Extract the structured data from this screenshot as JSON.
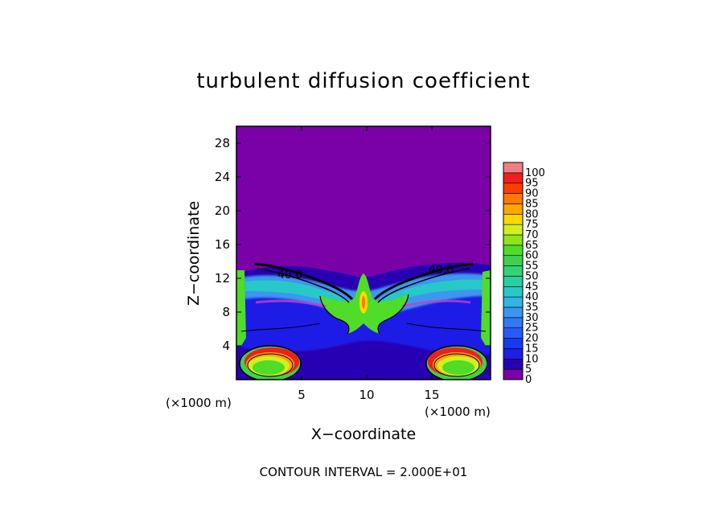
{
  "chart_data": {
    "type": "heatmap",
    "title": "turbulent diffusion coefficient",
    "xlabel": "X−coordinate",
    "ylabel": "Z−coordinate",
    "x_unit": "(×1000 m)",
    "y_unit": "(×1000 m)",
    "xlim": [
      0,
      19.5
    ],
    "ylim": [
      0,
      30
    ],
    "x_ticks": [
      5,
      10,
      15
    ],
    "y_ticks": [
      4,
      8,
      12,
      16,
      20,
      24,
      28
    ],
    "colorbar": {
      "levels": [
        0,
        5,
        10,
        15,
        20,
        25,
        30,
        35,
        40,
        45,
        50,
        55,
        60,
        65,
        70,
        75,
        80,
        85,
        90,
        95,
        100
      ],
      "colors": [
        "#7a00a8",
        "#2800b4",
        "#1e1ee6",
        "#143cf0",
        "#2a5af5",
        "#3278f5",
        "#3c96f0",
        "#32b4e6",
        "#28c8c8",
        "#28d2a0",
        "#32d278",
        "#3cd250",
        "#50dc28",
        "#8ce61e",
        "#d2f01e",
        "#ffd700",
        "#ffa500",
        "#ff7800",
        "#ff3c00",
        "#f01e1e",
        "#f08080"
      ]
    },
    "contour_labels": [
      "40.0",
      "40.0"
    ],
    "contour_interval_text": "CONTOUR INTERVAL = 2.000E+01",
    "grid": false,
    "legend": "colorbar-right"
  }
}
